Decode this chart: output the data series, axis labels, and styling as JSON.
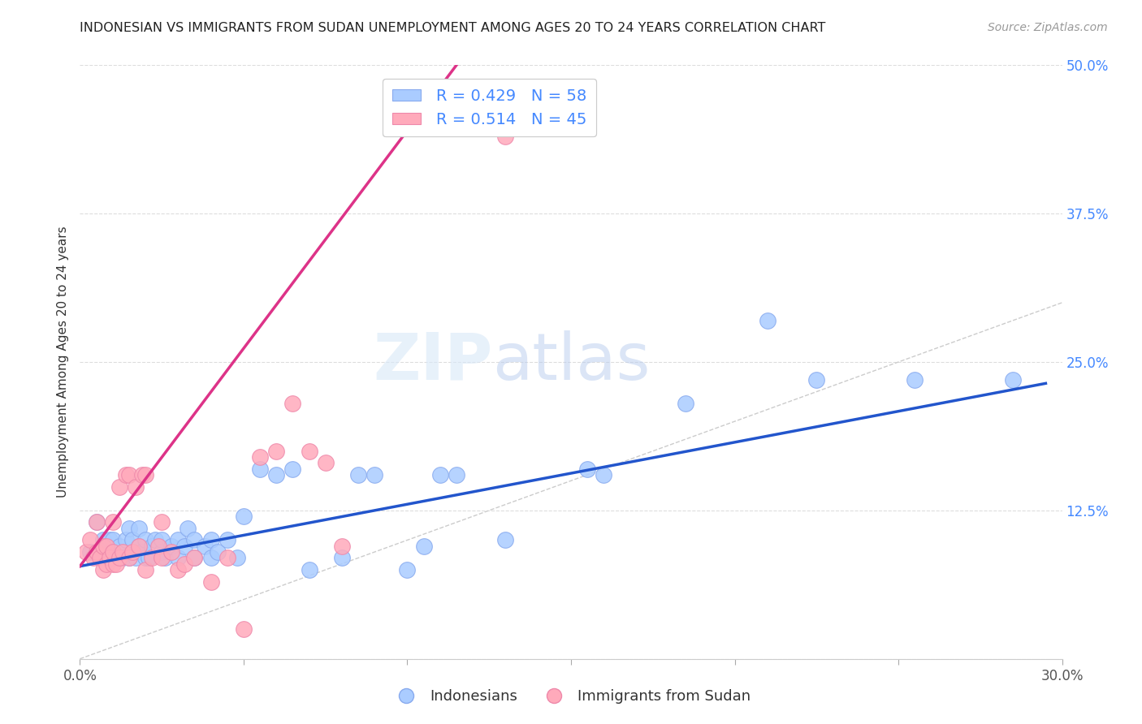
{
  "title": "INDONESIAN VS IMMIGRANTS FROM SUDAN UNEMPLOYMENT AMONG AGES 20 TO 24 YEARS CORRELATION CHART",
  "source": "Source: ZipAtlas.com",
  "ylabel": "Unemployment Among Ages 20 to 24 years",
  "xlim": [
    0,
    0.3
  ],
  "ylim": [
    0,
    0.5
  ],
  "xticks": [
    0.0,
    0.05,
    0.1,
    0.15,
    0.2,
    0.25,
    0.3
  ],
  "xticklabels": [
    "0.0%",
    "",
    "",
    "",
    "",
    "",
    "30.0%"
  ],
  "yticks": [
    0.0,
    0.125,
    0.25,
    0.375,
    0.5
  ],
  "yticklabels": [
    "",
    "12.5%",
    "25.0%",
    "37.5%",
    "50.0%"
  ],
  "blue_color": "#aaccff",
  "blue_edge_color": "#88aaee",
  "pink_color": "#ffaabb",
  "pink_edge_color": "#ee88aa",
  "blue_line_color": "#2255cc",
  "pink_line_color": "#dd3388",
  "legend_text_color": "#4488ff",
  "legend_r_blue": "0.429",
  "legend_n_blue": "58",
  "legend_r_pink": "0.514",
  "legend_n_pink": "45",
  "watermark_zip": "ZIP",
  "watermark_atlas": "atlas",
  "blue_scatter_x": [
    0.003,
    0.005,
    0.007,
    0.008,
    0.009,
    0.01,
    0.01,
    0.012,
    0.013,
    0.014,
    0.015,
    0.015,
    0.016,
    0.017,
    0.018,
    0.018,
    0.019,
    0.02,
    0.02,
    0.021,
    0.022,
    0.023,
    0.025,
    0.025,
    0.026,
    0.028,
    0.03,
    0.03,
    0.032,
    0.033,
    0.035,
    0.035,
    0.038,
    0.04,
    0.04,
    0.042,
    0.045,
    0.048,
    0.05,
    0.055,
    0.06,
    0.065,
    0.07,
    0.08,
    0.085,
    0.09,
    0.1,
    0.105,
    0.11,
    0.115,
    0.13,
    0.155,
    0.16,
    0.185,
    0.21,
    0.225,
    0.255,
    0.285
  ],
  "blue_scatter_y": [
    0.09,
    0.115,
    0.1,
    0.085,
    0.1,
    0.09,
    0.1,
    0.095,
    0.085,
    0.1,
    0.085,
    0.11,
    0.1,
    0.085,
    0.095,
    0.11,
    0.09,
    0.085,
    0.1,
    0.085,
    0.095,
    0.1,
    0.09,
    0.1,
    0.085,
    0.095,
    0.085,
    0.1,
    0.095,
    0.11,
    0.085,
    0.1,
    0.095,
    0.085,
    0.1,
    0.09,
    0.1,
    0.085,
    0.12,
    0.16,
    0.155,
    0.16,
    0.075,
    0.085,
    0.155,
    0.155,
    0.075,
    0.095,
    0.155,
    0.155,
    0.1,
    0.16,
    0.155,
    0.215,
    0.285,
    0.235,
    0.235,
    0.235
  ],
  "pink_scatter_x": [
    0.002,
    0.003,
    0.004,
    0.005,
    0.005,
    0.006,
    0.007,
    0.007,
    0.008,
    0.008,
    0.009,
    0.01,
    0.01,
    0.01,
    0.011,
    0.012,
    0.012,
    0.013,
    0.014,
    0.015,
    0.015,
    0.016,
    0.017,
    0.018,
    0.019,
    0.02,
    0.02,
    0.022,
    0.024,
    0.025,
    0.025,
    0.028,
    0.03,
    0.032,
    0.035,
    0.04,
    0.045,
    0.05,
    0.055,
    0.06,
    0.065,
    0.07,
    0.075,
    0.08,
    0.13
  ],
  "pink_scatter_y": [
    0.09,
    0.1,
    0.085,
    0.09,
    0.115,
    0.085,
    0.075,
    0.095,
    0.08,
    0.095,
    0.085,
    0.08,
    0.09,
    0.115,
    0.08,
    0.085,
    0.145,
    0.09,
    0.155,
    0.085,
    0.155,
    0.09,
    0.145,
    0.095,
    0.155,
    0.075,
    0.155,
    0.085,
    0.095,
    0.085,
    0.115,
    0.09,
    0.075,
    0.08,
    0.085,
    0.065,
    0.085,
    0.025,
    0.17,
    0.175,
    0.215,
    0.175,
    0.165,
    0.095,
    0.44
  ],
  "blue_line_x": [
    0.0,
    0.295
  ],
  "blue_line_y": [
    0.078,
    0.232
  ],
  "pink_line_x": [
    0.0,
    0.115
  ],
  "pink_line_y": [
    0.078,
    0.5
  ],
  "ref_line_x": [
    0.0,
    0.3
  ],
  "ref_line_y": [
    0.0,
    0.3
  ],
  "background_color": "#ffffff",
  "grid_color": "#dddddd"
}
